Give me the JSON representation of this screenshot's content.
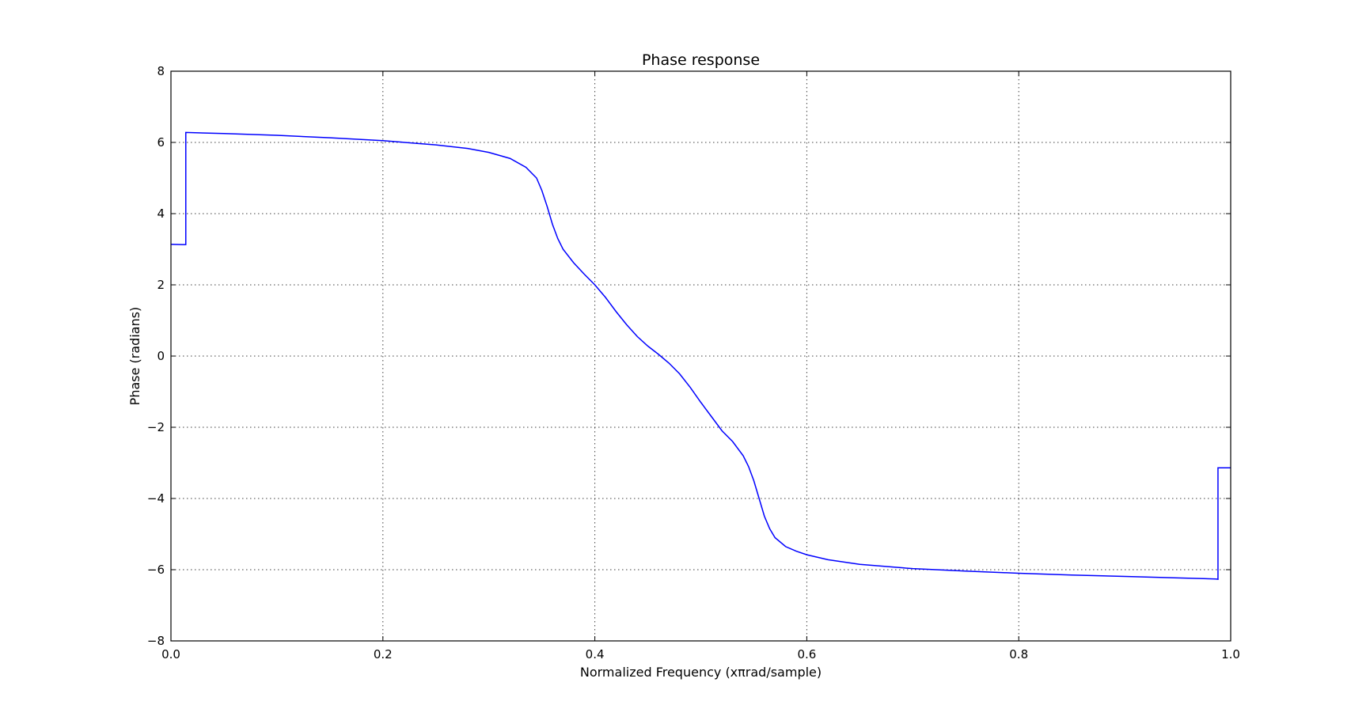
{
  "chart_data": {
    "type": "line",
    "title": "Phase response",
    "xlabel": "Normalized Frequency (xπrad/sample)",
    "ylabel": "Phase (radians)",
    "xlim": [
      0.0,
      1.0
    ],
    "ylim": [
      -8,
      8
    ],
    "xticks": [
      0.0,
      0.2,
      0.4,
      0.6,
      0.8,
      1.0
    ],
    "xtick_labels": [
      "0.0",
      "0.2",
      "0.4",
      "0.6",
      "0.8",
      "1.0"
    ],
    "yticks": [
      -8,
      -6,
      -4,
      -2,
      0,
      2,
      4,
      6,
      8
    ],
    "ytick_labels": [
      "−8",
      "−6",
      "−4",
      "−2",
      "0",
      "2",
      "4",
      "6",
      "8"
    ],
    "grid": true,
    "line_color": "#0000ff",
    "series": [
      {
        "x": [
          0.0,
          0.011,
          0.011,
          0.014,
          0.014,
          0.05,
          0.1,
          0.15,
          0.2,
          0.25,
          0.28,
          0.3,
          0.32,
          0.335,
          0.345,
          0.35,
          0.355,
          0.36,
          0.365,
          0.37,
          0.38,
          0.39,
          0.4,
          0.41,
          0.42,
          0.43,
          0.44,
          0.45,
          0.46,
          0.47,
          0.48,
          0.49,
          0.5,
          0.51,
          0.52,
          0.53,
          0.54,
          0.545,
          0.55,
          0.555,
          0.56,
          0.565,
          0.57,
          0.58,
          0.59,
          0.6,
          0.62,
          0.65,
          0.7,
          0.75,
          0.8,
          0.85,
          0.9,
          0.95,
          0.986,
          0.988,
          0.988,
          1.0
        ],
        "y": [
          3.14,
          3.13,
          3.13,
          3.13,
          6.28,
          6.25,
          6.2,
          6.13,
          6.05,
          5.93,
          5.83,
          5.72,
          5.55,
          5.3,
          5.0,
          4.65,
          4.2,
          3.7,
          3.3,
          3.0,
          2.62,
          2.3,
          2.0,
          1.65,
          1.25,
          0.88,
          0.55,
          0.28,
          0.05,
          -0.2,
          -0.5,
          -0.88,
          -1.3,
          -1.7,
          -2.1,
          -2.4,
          -2.8,
          -3.1,
          -3.5,
          -4.0,
          -4.5,
          -4.85,
          -5.1,
          -5.35,
          -5.48,
          -5.58,
          -5.72,
          -5.85,
          -5.97,
          -6.04,
          -6.1,
          -6.15,
          -6.19,
          -6.23,
          -6.26,
          -6.27,
          -3.14,
          -3.14
        ]
      }
    ]
  }
}
